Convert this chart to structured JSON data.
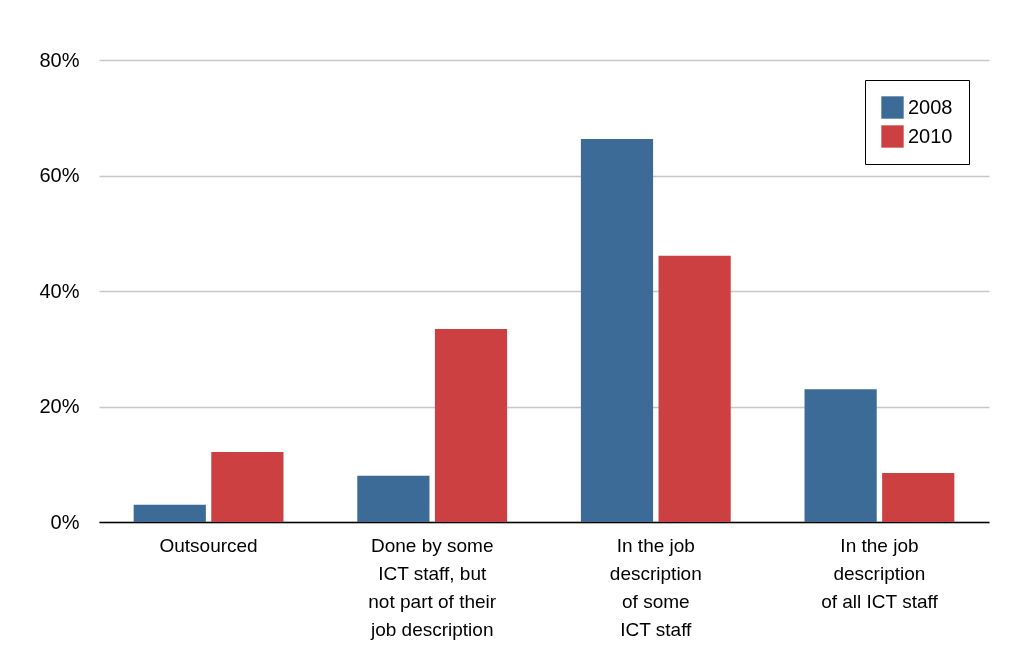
{
  "chart_data": {
    "type": "bar",
    "categories": [
      "Outsourced",
      "Done by some\nICT staff, but\nnot part of their\njob description",
      "In the job\ndescription\nof some\nICT staff",
      "In the job\ndescription\nof all ICT staff"
    ],
    "series": [
      {
        "name": "2008",
        "color": "#3b6b96",
        "values": [
          3,
          8,
          66.3,
          23
        ]
      },
      {
        "name": "2010",
        "color": "#cc4042",
        "values": [
          12.1,
          33.4,
          46.1,
          8.5
        ]
      }
    ],
    "ylim": [
      0,
      80
    ],
    "yticks": [
      {
        "value": 0,
        "label": "0%"
      },
      {
        "value": 20,
        "label": "20%"
      },
      {
        "value": 40,
        "label": "40%"
      },
      {
        "value": 60,
        "label": "60%"
      },
      {
        "value": 80,
        "label": "80%"
      }
    ],
    "grid": "y",
    "legend": "top right"
  }
}
